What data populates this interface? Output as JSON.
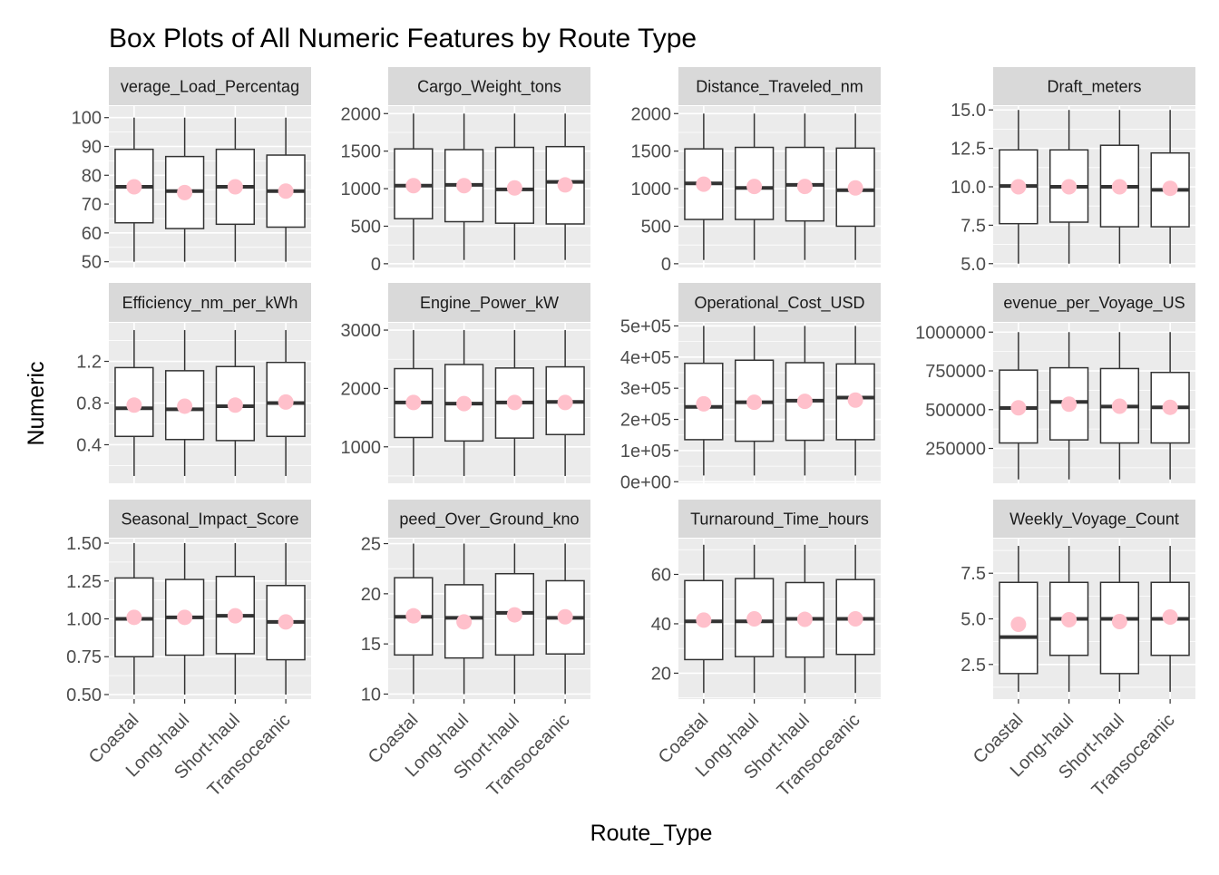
{
  "chart_data": {
    "type": "box",
    "title": "Box Plots of All Numeric Features by Route Type",
    "xlabel": "Route_Type",
    "ylabel": "Numeric",
    "categories": [
      "Coastal",
      "Long-haul",
      "Short-haul",
      "Transoceanic"
    ],
    "mean_marker_color": "#ffc0cb",
    "panel_background": "#ebebeb",
    "strip_background": "#d9d9d9",
    "facets": [
      {
        "name": "Average_Load_Percentage",
        "strip_label": "verage_Load_Percentag",
        "ylim": [
          48,
          104
        ],
        "ticks": [
          {
            "value": 50,
            "label": "50"
          },
          {
            "value": 60,
            "label": "60"
          },
          {
            "value": 70,
            "label": "70"
          },
          {
            "value": 80,
            "label": "80"
          },
          {
            "value": 90,
            "label": "90"
          },
          {
            "value": 100,
            "label": "100"
          }
        ],
        "boxes": [
          {
            "min": 50,
            "q1": 63.5,
            "median": 76,
            "q3": 89,
            "max": 100,
            "mean": 76
          },
          {
            "min": 50,
            "q1": 61.5,
            "median": 74.5,
            "q3": 86.5,
            "max": 100,
            "mean": 74
          },
          {
            "min": 50,
            "q1": 63,
            "median": 76,
            "q3": 89,
            "max": 100,
            "mean": 76
          },
          {
            "min": 50,
            "q1": 62,
            "median": 74.5,
            "q3": 87,
            "max": 100,
            "mean": 74.5
          }
        ]
      },
      {
        "name": "Cargo_Weight_tons",
        "strip_label": "Cargo_Weight_tons",
        "ylim": [
          -50,
          2100
        ],
        "ticks": [
          {
            "value": 0,
            "label": "0"
          },
          {
            "value": 500,
            "label": "500"
          },
          {
            "value": 1000,
            "label": "1000"
          },
          {
            "value": 1500,
            "label": "1500"
          },
          {
            "value": 2000,
            "label": "2000"
          }
        ],
        "boxes": [
          {
            "min": 50,
            "q1": 600,
            "median": 1040,
            "q3": 1530,
            "max": 2000,
            "mean": 1040
          },
          {
            "min": 50,
            "q1": 560,
            "median": 1050,
            "q3": 1520,
            "max": 2000,
            "mean": 1040
          },
          {
            "min": 50,
            "q1": 540,
            "median": 990,
            "q3": 1550,
            "max": 2000,
            "mean": 1010
          },
          {
            "min": 50,
            "q1": 530,
            "median": 1090,
            "q3": 1560,
            "max": 2000,
            "mean": 1050
          }
        ]
      },
      {
        "name": "Distance_Traveled_nm",
        "strip_label": "Distance_Traveled_nm",
        "ylim": [
          -50,
          2100
        ],
        "ticks": [
          {
            "value": 0,
            "label": "0"
          },
          {
            "value": 500,
            "label": "500"
          },
          {
            "value": 1000,
            "label": "1000"
          },
          {
            "value": 1500,
            "label": "1500"
          },
          {
            "value": 2000,
            "label": "2000"
          }
        ],
        "boxes": [
          {
            "min": 50,
            "q1": 590,
            "median": 1070,
            "q3": 1530,
            "max": 2000,
            "mean": 1060
          },
          {
            "min": 50,
            "q1": 590,
            "median": 1010,
            "q3": 1550,
            "max": 2000,
            "mean": 1030
          },
          {
            "min": 50,
            "q1": 570,
            "median": 1050,
            "q3": 1550,
            "max": 2000,
            "mean": 1030
          },
          {
            "min": 50,
            "q1": 500,
            "median": 980,
            "q3": 1540,
            "max": 2000,
            "mean": 1010
          }
        ]
      },
      {
        "name": "Draft_meters",
        "strip_label": "Draft_meters",
        "ylim": [
          4.75,
          15.25
        ],
        "ticks": [
          {
            "value": 5,
            "label": "5.0"
          },
          {
            "value": 7.5,
            "label": "7.5"
          },
          {
            "value": 10,
            "label": "10.0"
          },
          {
            "value": 12.5,
            "label": "12.5"
          },
          {
            "value": 15,
            "label": "15.0"
          }
        ],
        "boxes": [
          {
            "min": 5,
            "q1": 7.6,
            "median": 10.05,
            "q3": 12.4,
            "max": 15,
            "mean": 10
          },
          {
            "min": 5,
            "q1": 7.7,
            "median": 10,
            "q3": 12.4,
            "max": 15,
            "mean": 10
          },
          {
            "min": 5,
            "q1": 7.4,
            "median": 10,
            "q3": 12.7,
            "max": 15,
            "mean": 10
          },
          {
            "min": 5,
            "q1": 7.4,
            "median": 9.8,
            "q3": 12.2,
            "max": 15,
            "mean": 9.9
          }
        ]
      },
      {
        "name": "Efficiency_nm_per_kWh",
        "strip_label": "Efficiency_nm_per_kWh",
        "ylim": [
          0.03,
          1.57
        ],
        "ticks": [
          {
            "value": 0.4,
            "label": "0.4"
          },
          {
            "value": 0.8,
            "label": "0.8"
          },
          {
            "value": 1.2,
            "label": "1.2"
          }
        ],
        "boxes": [
          {
            "min": 0.1,
            "q1": 0.48,
            "median": 0.75,
            "q3": 1.14,
            "max": 1.5,
            "mean": 0.78
          },
          {
            "min": 0.1,
            "q1": 0.45,
            "median": 0.74,
            "q3": 1.11,
            "max": 1.5,
            "mean": 0.77
          },
          {
            "min": 0.1,
            "q1": 0.44,
            "median": 0.77,
            "q3": 1.15,
            "max": 1.5,
            "mean": 0.78
          },
          {
            "min": 0.1,
            "q1": 0.48,
            "median": 0.8,
            "q3": 1.19,
            "max": 1.5,
            "mean": 0.81
          }
        ]
      },
      {
        "name": "Engine_Power_kW",
        "strip_label": "Engine_Power_kW",
        "ylim": [
          375,
          3125
        ],
        "ticks": [
          {
            "value": 1000,
            "label": "1000"
          },
          {
            "value": 2000,
            "label": "2000"
          },
          {
            "value": 3000,
            "label": "3000"
          }
        ],
        "boxes": [
          {
            "min": 500,
            "q1": 1160,
            "median": 1760,
            "q3": 2340,
            "max": 3000,
            "mean": 1760
          },
          {
            "min": 500,
            "q1": 1100,
            "median": 1740,
            "q3": 2410,
            "max": 3000,
            "mean": 1740
          },
          {
            "min": 500,
            "q1": 1150,
            "median": 1760,
            "q3": 2350,
            "max": 3000,
            "mean": 1760
          },
          {
            "min": 500,
            "q1": 1210,
            "median": 1770,
            "q3": 2370,
            "max": 3000,
            "mean": 1760
          }
        ]
      },
      {
        "name": "Operational_Cost_USD",
        "strip_label": "Operational_Cost_USD",
        "ylim": [
          -5000,
          510000
        ],
        "ticks": [
          {
            "value": 0,
            "label": "0e+00"
          },
          {
            "value": 100000,
            "label": "1e+05"
          },
          {
            "value": 200000,
            "label": "2e+05"
          },
          {
            "value": 300000,
            "label": "3e+05"
          },
          {
            "value": 400000,
            "label": "4e+05"
          },
          {
            "value": 500000,
            "label": "5e+05"
          }
        ],
        "boxes": [
          {
            "min": 20000,
            "q1": 135000,
            "median": 240000,
            "q3": 380000,
            "max": 500000,
            "mean": 250000
          },
          {
            "min": 20000,
            "q1": 130000,
            "median": 255000,
            "q3": 390000,
            "max": 500000,
            "mean": 255000
          },
          {
            "min": 20000,
            "q1": 133000,
            "median": 260000,
            "q3": 382000,
            "max": 500000,
            "mean": 258000
          },
          {
            "min": 20000,
            "q1": 135000,
            "median": 270000,
            "q3": 378000,
            "max": 500000,
            "mean": 262000
          }
        ]
      },
      {
        "name": "Revenue_per_Voyage_USD",
        "strip_label": "evenue_per_Voyage_US",
        "ylim": [
          25000,
          1060000
        ],
        "ticks": [
          {
            "value": 250000,
            "label": "250000"
          },
          {
            "value": 500000,
            "label": "500000"
          },
          {
            "value": 750000,
            "label": "750000"
          },
          {
            "value": 1000000,
            "label": "1000000"
          }
        ],
        "boxes": [
          {
            "min": 50000,
            "q1": 285000,
            "median": 510000,
            "q3": 755000,
            "max": 1000000,
            "mean": 512000
          },
          {
            "min": 50000,
            "q1": 305000,
            "median": 550000,
            "q3": 770000,
            "max": 1000000,
            "mean": 535000
          },
          {
            "min": 50000,
            "q1": 285000,
            "median": 520000,
            "q3": 765000,
            "max": 1000000,
            "mean": 522000
          },
          {
            "min": 50000,
            "q1": 285000,
            "median": 515000,
            "q3": 740000,
            "max": 1000000,
            "mean": 515000
          }
        ]
      },
      {
        "name": "Seasonal_Impact_Score",
        "strip_label": "Seasonal_Impact_Score",
        "ylim": [
          0.47,
          1.53
        ],
        "ticks": [
          {
            "value": 0.5,
            "label": "0.50"
          },
          {
            "value": 0.75,
            "label": "0.75"
          },
          {
            "value": 1,
            "label": "1.00"
          },
          {
            "value": 1.25,
            "label": "1.25"
          },
          {
            "value": 1.5,
            "label": "1.50"
          }
        ],
        "boxes": [
          {
            "min": 0.5,
            "q1": 0.75,
            "median": 1.0,
            "q3": 1.27,
            "max": 1.5,
            "mean": 1.01
          },
          {
            "min": 0.5,
            "q1": 0.76,
            "median": 1.01,
            "q3": 1.26,
            "max": 1.5,
            "mean": 1.01
          },
          {
            "min": 0.5,
            "q1": 0.77,
            "median": 1.02,
            "q3": 1.28,
            "max": 1.5,
            "mean": 1.02
          },
          {
            "min": 0.5,
            "q1": 0.73,
            "median": 0.98,
            "q3": 1.22,
            "max": 1.5,
            "mean": 0.98
          }
        ]
      },
      {
        "name": "Speed_Over_Ground_knots",
        "strip_label": "peed_Over_Ground_kno",
        "ylim": [
          9.5,
          25.5
        ],
        "ticks": [
          {
            "value": 10,
            "label": "10"
          },
          {
            "value": 15,
            "label": "15"
          },
          {
            "value": 20,
            "label": "20"
          },
          {
            "value": 25,
            "label": "25"
          }
        ],
        "boxes": [
          {
            "min": 10,
            "q1": 13.9,
            "median": 17.7,
            "q3": 21.6,
            "max": 25,
            "mean": 17.8
          },
          {
            "min": 10,
            "q1": 13.6,
            "median": 17.6,
            "q3": 20.9,
            "max": 25,
            "mean": 17.2
          },
          {
            "min": 10,
            "q1": 13.9,
            "median": 18.1,
            "q3": 22.0,
            "max": 25,
            "mean": 17.9
          },
          {
            "min": 10,
            "q1": 14.0,
            "median": 17.6,
            "q3": 21.3,
            "max": 25,
            "mean": 17.7
          }
        ]
      },
      {
        "name": "Turnaround_Time_hours",
        "strip_label": "Turnaround_Time_hours",
        "ylim": [
          9.5,
          74.5
        ],
        "ticks": [
          {
            "value": 20,
            "label": "20"
          },
          {
            "value": 40,
            "label": "40"
          },
          {
            "value": 60,
            "label": "60"
          }
        ],
        "boxes": [
          {
            "min": 12,
            "q1": 25.5,
            "median": 41,
            "q3": 57.5,
            "max": 72,
            "mean": 41.5
          },
          {
            "min": 12,
            "q1": 26.7,
            "median": 41,
            "q3": 58.3,
            "max": 72,
            "mean": 42
          },
          {
            "min": 12,
            "q1": 26.5,
            "median": 42,
            "q3": 56.7,
            "max": 72,
            "mean": 41.8
          },
          {
            "min": 12,
            "q1": 27.6,
            "median": 42,
            "q3": 57.9,
            "max": 72,
            "mean": 42
          }
        ]
      },
      {
        "name": "Weekly_Voyage_Count",
        "strip_label": "Weekly_Voyage_Count",
        "ylim": [
          0.6,
          9.4
        ],
        "ticks": [
          {
            "value": 2.5,
            "label": "2.5"
          },
          {
            "value": 5,
            "label": "5.0"
          },
          {
            "value": 7.5,
            "label": "7.5"
          }
        ],
        "boxes": [
          {
            "min": 1,
            "q1": 2,
            "median": 4,
            "q3": 7,
            "max": 9,
            "mean": 4.7
          },
          {
            "min": 1,
            "q1": 3,
            "median": 5,
            "q3": 7,
            "max": 9,
            "mean": 4.95
          },
          {
            "min": 1,
            "q1": 2,
            "median": 5,
            "q3": 7,
            "max": 9,
            "mean": 4.85
          },
          {
            "min": 1,
            "q1": 3,
            "median": 5,
            "q3": 7,
            "max": 9,
            "mean": 5.1
          }
        ]
      }
    ]
  }
}
